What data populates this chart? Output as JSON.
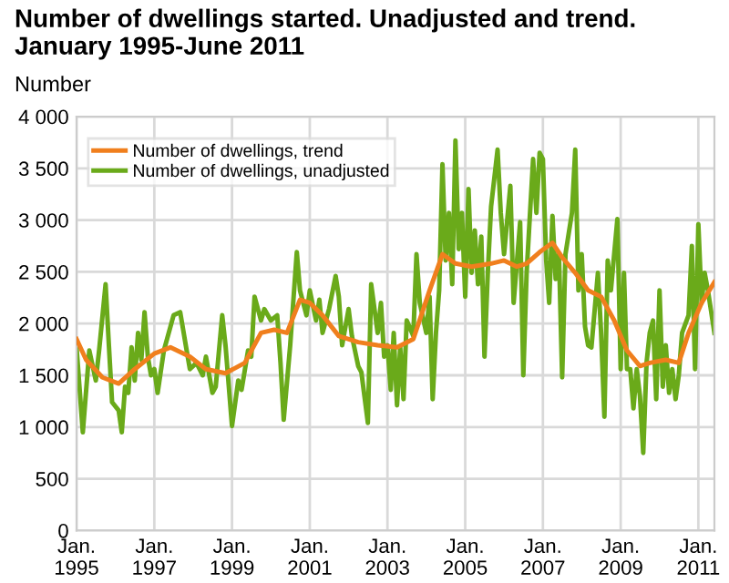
{
  "chart_data": {
    "type": "line",
    "title": "Number of dwellings started. Unadjusted and trend. January 1995-June 2011",
    "ylabel": "Number",
    "xlim": [
      "1995-01",
      "2011-06"
    ],
    "ylim": [
      0,
      4000
    ],
    "xticks": [
      {
        "value": "1995-01",
        "label": "Jan.\n1995"
      },
      {
        "value": "1997-01",
        "label": "Jan.\n1997"
      },
      {
        "value": "1999-01",
        "label": "Jan.\n1999"
      },
      {
        "value": "2001-01",
        "label": "Jan.\n2001"
      },
      {
        "value": "2003-01",
        "label": "Jan.\n2003"
      },
      {
        "value": "2005-01",
        "label": "Jan.\n2005"
      },
      {
        "value": "2007-01",
        "label": "Jan.\n2007"
      },
      {
        "value": "2009-01",
        "label": "Jan.\n2009"
      },
      {
        "value": "2011-01",
        "label": "Jan.\n2011"
      }
    ],
    "yticks": [
      0,
      {
        "value": 500,
        "label": "500"
      },
      {
        "value": 1000,
        "label": "1 000"
      },
      {
        "value": 1500,
        "label": "1 500"
      },
      {
        "value": 2000,
        "label": "2 000"
      },
      {
        "value": 2500,
        "label": "2 500"
      },
      {
        "value": 3000,
        "label": "3 000"
      },
      {
        "value": 3500,
        "label": "3 500"
      },
      {
        "value": 4000,
        "label": "4 000"
      }
    ],
    "grid": true,
    "legend": "top left",
    "marker": "none",
    "line_style": "solid",
    "series": [
      {
        "name": "Number of dwellings, trend",
        "color": "#f07f1d",
        "x": [
          "1995-01",
          "1995-04",
          "1995-09",
          "1996-02",
          "1996-07",
          "1997-01",
          "1997-06",
          "1997-12",
          "1998-05",
          "1998-11",
          "1999-05",
          "1999-10",
          "2000-02",
          "2000-06",
          "2000-10",
          "2001-01",
          "2001-05",
          "2001-10",
          "2002-04",
          "2002-10",
          "2003-04",
          "2003-09",
          "2004-02",
          "2004-06",
          "2004-10",
          "2005-03",
          "2005-09",
          "2006-01",
          "2006-05",
          "2006-08",
          "2006-12",
          "2007-04",
          "2007-07",
          "2007-11",
          "2008-03",
          "2008-07",
          "2008-11",
          "2009-03",
          "2009-07",
          "2009-10",
          "2010-03",
          "2010-07",
          "2010-10",
          "2011-02",
          "2011-06"
        ],
        "values": [
          1850,
          1650,
          1480,
          1420,
          1560,
          1710,
          1770,
          1680,
          1560,
          1520,
          1620,
          1910,
          1940,
          1910,
          2230,
          2200,
          2080,
          1880,
          1820,
          1790,
          1770,
          1850,
          2320,
          2670,
          2580,
          2550,
          2580,
          2610,
          2550,
          2580,
          2690,
          2780,
          2640,
          2490,
          2320,
          2260,
          2030,
          1740,
          1590,
          1620,
          1650,
          1620,
          1910,
          2200,
          2400
        ]
      },
      {
        "name": "Number of dwellings, unadjusted",
        "color": "#6aaa1a",
        "x": [
          "1995-01",
          "1995-03",
          "1995-05",
          "1995-07",
          "1995-08",
          "1995-10",
          "1995-11",
          "1995-12",
          "1996-02",
          "1996-03",
          "1996-04",
          "1996-05",
          "1996-06",
          "1996-07",
          "1996-08",
          "1996-09",
          "1996-10",
          "1996-11",
          "1996-12",
          "1997-01",
          "1997-02",
          "1997-04",
          "1997-07",
          "1997-09",
          "1997-11",
          "1997-12",
          "1998-02",
          "1998-04",
          "1998-05",
          "1998-07",
          "1998-08",
          "1998-10",
          "1998-11",
          "1999-01",
          "1999-03",
          "1999-04",
          "1999-06",
          "1999-07",
          "1999-08",
          "1999-10",
          "1999-11",
          "2000-01",
          "2000-03",
          "2000-04",
          "2000-05",
          "2000-07",
          "2000-09",
          "2000-10",
          "2000-12",
          "2001-01",
          "2001-03",
          "2001-04",
          "2001-05",
          "2001-07",
          "2001-09",
          "2001-10",
          "2001-11",
          "2002-01",
          "2002-02",
          "2002-04",
          "2002-05",
          "2002-07",
          "2002-08",
          "2002-10",
          "2002-11",
          "2002-12",
          "2003-01",
          "2003-02",
          "2003-03",
          "2003-04",
          "2003-05",
          "2003-06",
          "2003-07",
          "2003-09",
          "2003-10",
          "2003-11",
          "2004-01",
          "2004-02",
          "2004-03",
          "2004-04",
          "2004-05",
          "2004-06",
          "2004-07",
          "2004-08",
          "2004-09",
          "2004-10",
          "2004-11",
          "2004-12",
          "2005-01",
          "2005-02",
          "2005-03",
          "2005-04",
          "2005-05",
          "2005-06",
          "2005-07",
          "2005-08",
          "2005-09",
          "2005-11",
          "2005-12",
          "2006-01",
          "2006-03",
          "2006-04",
          "2006-06",
          "2006-07",
          "2006-08",
          "2006-10",
          "2006-11",
          "2006-12",
          "2007-01",
          "2007-02",
          "2007-03",
          "2007-04",
          "2007-05",
          "2007-06",
          "2007-07",
          "2007-08",
          "2007-10",
          "2007-11",
          "2007-12",
          "2008-01",
          "2008-02",
          "2008-03",
          "2008-04",
          "2008-06",
          "2008-07",
          "2008-08",
          "2008-09",
          "2008-10",
          "2008-11",
          "2008-12",
          "2009-01",
          "2009-02",
          "2009-03",
          "2009-04",
          "2009-05",
          "2009-06",
          "2009-07",
          "2009-08",
          "2009-09",
          "2009-10",
          "2009-11",
          "2009-12",
          "2010-01",
          "2010-02",
          "2010-03",
          "2010-04",
          "2010-05",
          "2010-06",
          "2010-07",
          "2010-08",
          "2010-10",
          "2010-11",
          "2010-12",
          "2011-01",
          "2011-02",
          "2011-03",
          "2011-04",
          "2011-06"
        ],
        "values": [
          1770,
          950,
          1740,
          1450,
          1740,
          2380,
          1790,
          1240,
          1160,
          950,
          1390,
          1330,
          1770,
          1450,
          1910,
          1650,
          2110,
          1680,
          1500,
          1560,
          1330,
          1740,
          2080,
          2110,
          1740,
          1560,
          1620,
          1500,
          1680,
          1330,
          1390,
          2080,
          1790,
          1010,
          1450,
          1360,
          1740,
          1680,
          2260,
          2030,
          2140,
          2030,
          2080,
          1620,
          1070,
          1790,
          2690,
          2320,
          2080,
          2320,
          2030,
          2230,
          1910,
          2140,
          2460,
          2260,
          1790,
          2140,
          1880,
          1590,
          1530,
          1040,
          2380,
          1910,
          2200,
          1680,
          1790,
          1360,
          1910,
          1210,
          1770,
          1270,
          2030,
          1880,
          2670,
          2200,
          1910,
          2260,
          1270,
          1910,
          2320,
          3540,
          2610,
          3070,
          2380,
          3770,
          2720,
          3070,
          2260,
          3300,
          2490,
          2900,
          2380,
          2840,
          1680,
          2490,
          3130,
          3680,
          3070,
          2670,
          3330,
          2200,
          2980,
          1500,
          2490,
          3590,
          3070,
          3650,
          3590,
          2610,
          2200,
          3040,
          2430,
          2670,
          1480,
          2670,
          3070,
          3680,
          2320,
          2670,
          1970,
          1790,
          1770,
          2490,
          1910,
          1100,
          2610,
          2320,
          2670,
          3010,
          1560,
          2490,
          1560,
          1560,
          1180,
          1560,
          1300,
          750,
          1620,
          1910,
          2030,
          1270,
          2320,
          1390,
          1790,
          1330,
          1560,
          1270,
          1500,
          1910,
          2080,
          2750,
          1560,
          2960,
          2200,
          2490,
          2320,
          1910
        ]
      }
    ]
  }
}
